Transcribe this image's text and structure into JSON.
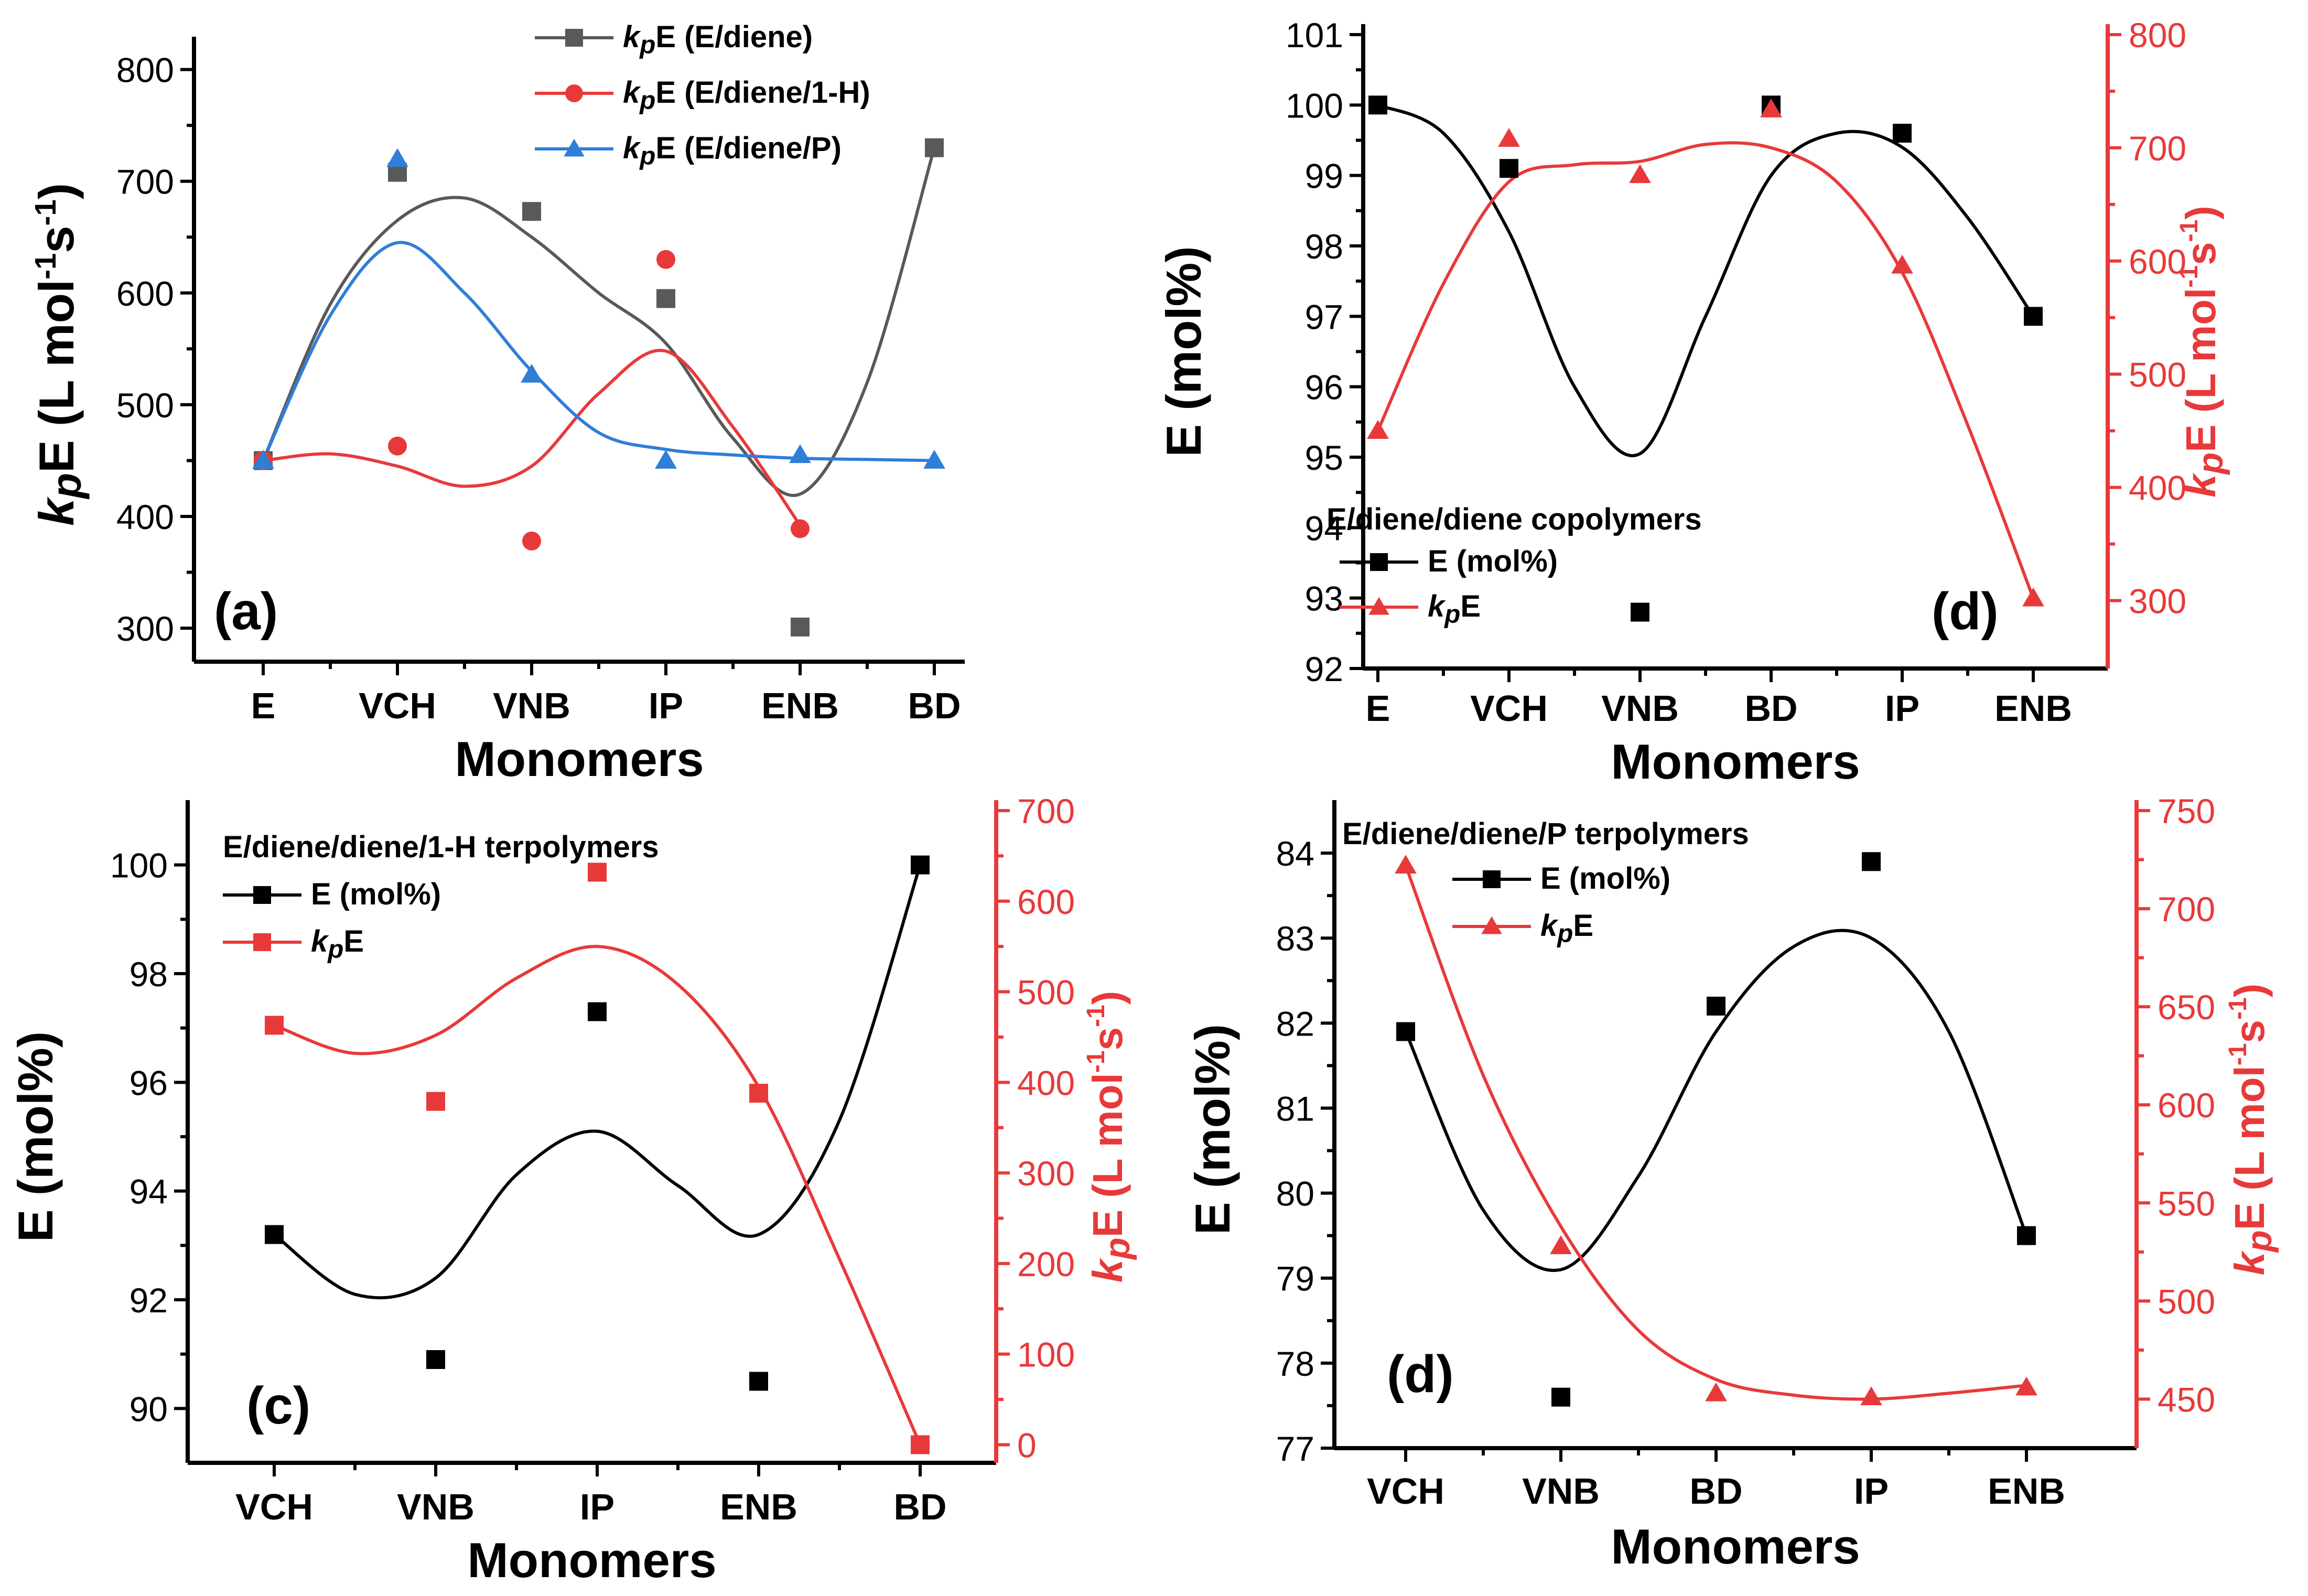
{
  "chart_data": [
    {
      "type": "scatter",
      "panel_label": "(a)",
      "xlabel": "Monomers",
      "ylabel": {
        "k": "k",
        "p": "p",
        "E": "E",
        "unit": " (L mol",
        "sup1": "-1",
        "s": "s",
        "sup2": "-1",
        "close": ")"
      },
      "categories": [
        "E",
        "VCH",
        "VNB",
        "IP",
        "ENB",
        "BD"
      ],
      "ylim": [
        270,
        820
      ],
      "yticks": [
        300,
        400,
        500,
        600,
        700,
        800
      ],
      "series": [
        {
          "name": "E (E/diene)",
          "k": "k",
          "p": "p",
          "color": "#595959",
          "marker": "square",
          "x": [
            0,
            1,
            2,
            3,
            4,
            5
          ],
          "values": [
            450,
            708,
            673,
            595,
            301,
            730
          ],
          "fit_x": [
            0,
            0.5,
            1,
            1.5,
            2,
            2.5,
            3,
            3.5,
            4,
            4.5,
            5
          ],
          "fit_y": [
            450,
            590,
            665,
            685,
            650,
            600,
            555,
            470,
            420,
            520,
            730
          ]
        },
        {
          "name": "E (E/diene/1-H)",
          "k": "k",
          "p": "p",
          "color": "#e8393a",
          "marker": "circle",
          "x": [
            0,
            1,
            2,
            3,
            4
          ],
          "values": [
            450,
            463,
            378,
            630,
            389
          ],
          "fit_x": [
            0,
            0.5,
            1,
            1.5,
            2,
            2.5,
            3,
            3.5,
            4
          ],
          "fit_y": [
            450,
            456,
            445,
            427,
            445,
            510,
            548,
            480,
            392
          ]
        },
        {
          "name": "E (E/diene/P)",
          "k": "k",
          "p": "p",
          "color": "#2f7ed8",
          "marker": "triangle",
          "x": [
            0,
            1,
            2,
            3,
            4,
            5
          ],
          "values": [
            450,
            720,
            527,
            450,
            455,
            450
          ],
          "fit_x": [
            0,
            0.5,
            1,
            1.5,
            2,
            2.5,
            3,
            3.5,
            4,
            4.5,
            5
          ],
          "fit_y": [
            450,
            580,
            645,
            600,
            530,
            475,
            460,
            455,
            452,
            451,
            450
          ]
        }
      ]
    },
    {
      "type": "scatter",
      "panel_label": "(d)",
      "legend_title": "E/diene/diene copolymers",
      "xlabel": "Monomers",
      "ylabel": "E (mol%)",
      "ylabel_right": {
        "k": "k",
        "p": "p",
        "E": "E",
        "unit": " (L mol",
        "sup1": "-1",
        "s": "s",
        "sup2": "-1",
        "close": ")"
      },
      "categories": [
        "E",
        "VCH",
        "VNB",
        "BD",
        "IP",
        "ENB"
      ],
      "ylim": [
        92,
        101
      ],
      "yticks": [
        92,
        93,
        94,
        95,
        96,
        97,
        98,
        99,
        100,
        101
      ],
      "y2lim": [
        240,
        800
      ],
      "y2ticks": [
        300,
        400,
        500,
        600,
        700,
        800
      ],
      "series": [
        {
          "name": "E (mol%)",
          "axis": "left",
          "color": "#000000",
          "marker": "square",
          "x": [
            0,
            1,
            2,
            3,
            4,
            5
          ],
          "values": [
            100,
            99.1,
            92.8,
            100,
            99.6,
            97
          ],
          "fit_x": [
            0,
            0.5,
            1,
            1.5,
            2,
            2.5,
            3,
            3.5,
            4,
            4.5,
            5
          ],
          "fit_y": [
            100,
            99.6,
            98.2,
            96,
            95.05,
            97,
            99,
            99.6,
            99.4,
            98.4,
            97
          ]
        },
        {
          "name": "E",
          "k": "k",
          "p": "p",
          "axis": "right",
          "color": "#e8393a",
          "marker": "triangle",
          "x": [
            0,
            1,
            2,
            3,
            4,
            5
          ],
          "values": [
            450,
            708,
            676,
            734,
            596,
            302
          ],
          "fit_x": [
            0,
            0.5,
            1,
            1.5,
            2,
            2.5,
            3,
            3.5,
            4,
            4.5,
            5
          ],
          "fit_y": [
            450,
            580,
            670,
            685,
            688,
            703,
            700,
            670,
            590,
            455,
            302
          ]
        }
      ]
    },
    {
      "type": "scatter",
      "panel_label": "(c)",
      "legend_title": "E/diene/diene/1-H terpolymers",
      "xlabel": "Monomers",
      "ylabel": "E (mol%)",
      "ylabel_right": {
        "k": "k",
        "p": "p",
        "E": "E",
        "unit": " (L mol",
        "sup1": "-1",
        "s": "s",
        "sup2": "-1",
        "close": ")"
      },
      "categories": [
        "VCH",
        "VNB",
        "IP",
        "ENB",
        "BD"
      ],
      "ylim": [
        89,
        101
      ],
      "yticks": [
        90,
        92,
        94,
        96,
        98,
        100
      ],
      "y2lim": [
        -20,
        700
      ],
      "y2ticks": [
        0,
        100,
        200,
        300,
        400,
        500,
        600,
        700
      ],
      "series": [
        {
          "name": "E (mol%)",
          "axis": "left",
          "color": "#000000",
          "marker": "square",
          "x": [
            0,
            1,
            2,
            3,
            4
          ],
          "values": [
            93.2,
            90.9,
            97.3,
            90.5,
            100
          ],
          "fit_x": [
            0,
            0.5,
            1,
            1.5,
            2,
            2.5,
            3,
            3.5,
            4
          ],
          "fit_y": [
            93.2,
            92.1,
            92.4,
            94.3,
            95.1,
            94.1,
            93.2,
            95.3,
            100
          ]
        },
        {
          "name": "E",
          "k": "k",
          "p": "p",
          "axis": "right",
          "color": "#e8393a",
          "marker": "square",
          "x": [
            0,
            1,
            2,
            3,
            4
          ],
          "values": [
            463,
            379,
            632,
            388,
            0
          ],
          "fit_x": [
            0,
            0.5,
            1,
            1.5,
            2,
            2.5,
            3,
            3.5,
            4
          ],
          "fit_y": [
            463,
            432,
            452,
            515,
            550,
            508,
            395,
            205,
            0
          ]
        }
      ]
    },
    {
      "type": "scatter",
      "panel_label": "(d)",
      "legend_title": "E/diene/diene/P terpolymers",
      "xlabel": "Monomers",
      "ylabel": "E (mol%)",
      "ylabel_right": {
        "k": "k",
        "p": "p",
        "E": "E",
        "unit": " (L mol",
        "sup1": "-1",
        "s": "s",
        "sup2": "-1",
        "close": ")"
      },
      "categories": [
        "VCH",
        "VNB",
        "BD",
        "IP",
        "ENB"
      ],
      "ylim": [
        77,
        84.5
      ],
      "yticks": [
        77,
        78,
        79,
        80,
        81,
        82,
        83,
        84
      ],
      "y2lim": [
        425,
        750
      ],
      "y2ticks": [
        450,
        500,
        550,
        600,
        650,
        700,
        750
      ],
      "series": [
        {
          "name": "E (mol%)",
          "axis": "left",
          "color": "#000000",
          "marker": "square",
          "x": [
            0,
            1,
            2,
            3,
            4
          ],
          "values": [
            81.9,
            77.6,
            82.2,
            83.9,
            79.5
          ],
          "fit_x": [
            0,
            0.5,
            1,
            1.5,
            2,
            2.5,
            3,
            3.5,
            4
          ],
          "fit_y": [
            81.9,
            79.8,
            79.1,
            80.2,
            81.9,
            82.9,
            83.0,
            81.9,
            79.5
          ]
        },
        {
          "name": "E",
          "k": "k",
          "p": "p",
          "axis": "right",
          "color": "#e8393a",
          "marker": "triangle",
          "x": [
            0,
            1,
            2,
            3,
            4
          ],
          "values": [
            722,
            528,
            453,
            451,
            456
          ],
          "fit_x": [
            0,
            0.5,
            1,
            1.5,
            2,
            2.5,
            3,
            3.5,
            4
          ],
          "fit_y": [
            722,
            615,
            538,
            485,
            460,
            452,
            450,
            453,
            457
          ]
        }
      ]
    }
  ]
}
